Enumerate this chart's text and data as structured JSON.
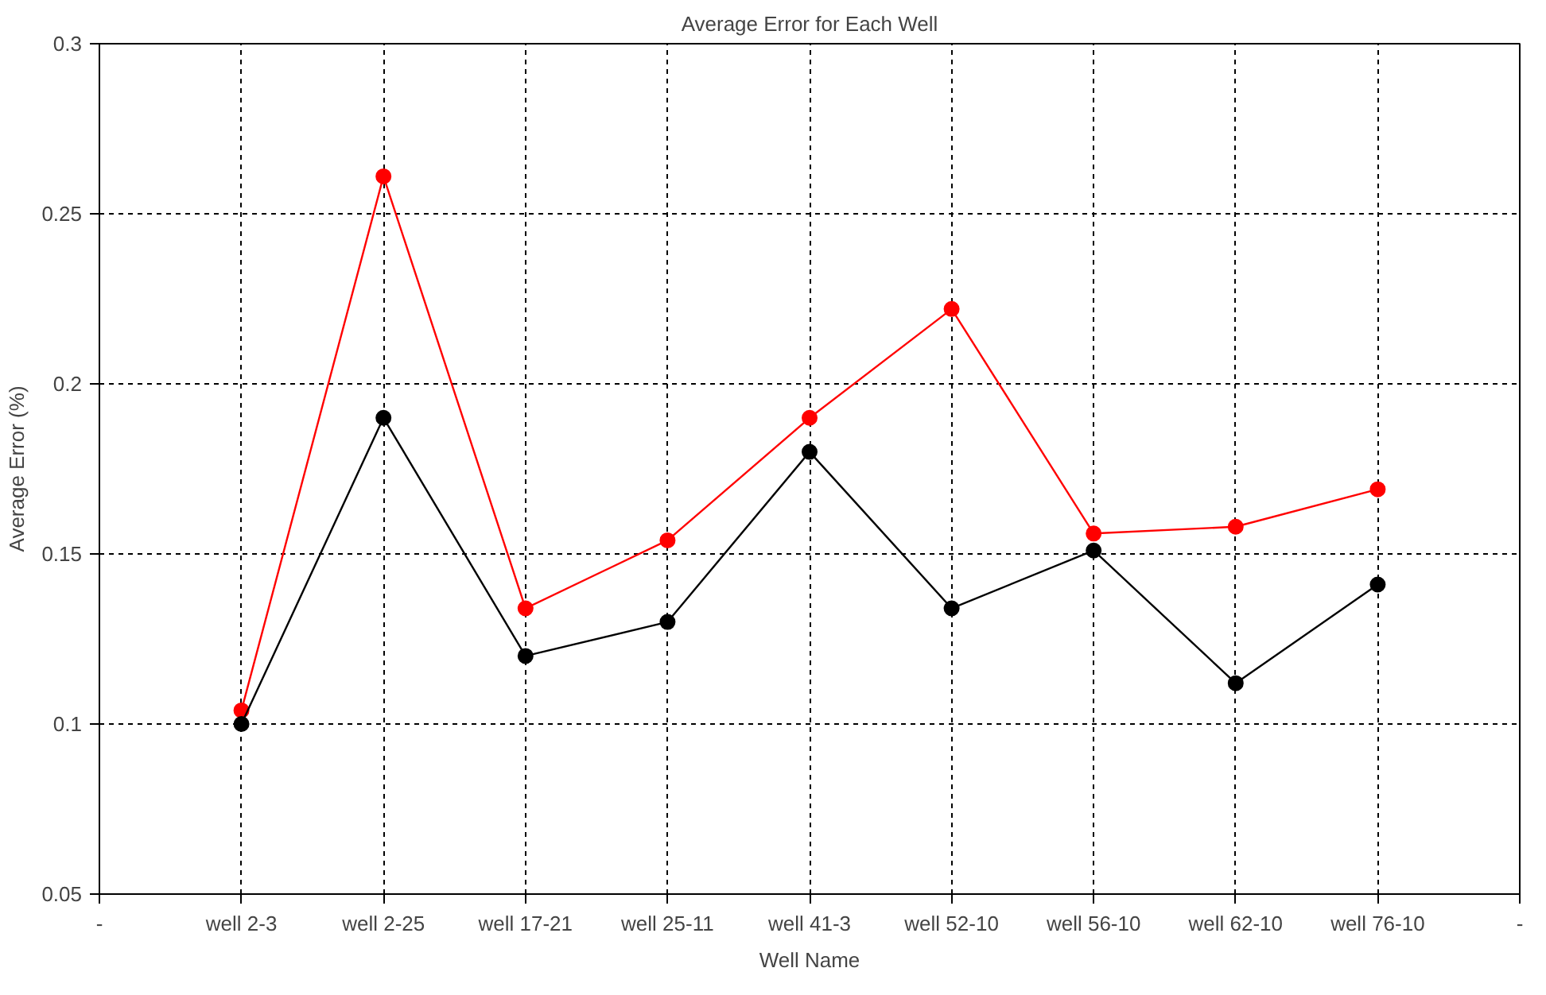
{
  "chart_data": {
    "type": "line",
    "title": "Average Error for Each Well",
    "xlabel": "Well Name",
    "ylabel": "Average Error (%)",
    "categories": [
      "-",
      "well 2-3",
      "well 2-25",
      "well 17-21",
      "well 25-11",
      "well 41-3",
      "well 52-10",
      "well 56-10",
      "well 62-10",
      "well 76-10",
      "-"
    ],
    "series": [
      {
        "color": "#ff0000",
        "values": [
          null,
          0.104,
          0.261,
          0.134,
          0.154,
          0.19,
          0.222,
          0.156,
          0.158,
          0.169,
          null
        ]
      },
      {
        "color": "#000000",
        "values": [
          null,
          0.1,
          0.19,
          0.12,
          0.13,
          0.18,
          0.134,
          0.151,
          0.112,
          0.141,
          null
        ]
      }
    ],
    "ylim": [
      0.05,
      0.3
    ],
    "yticks": [
      0.05,
      0.1,
      0.15,
      0.2,
      0.25,
      0.3
    ],
    "grid": true,
    "marker": "circle",
    "line_style": "solid"
  }
}
